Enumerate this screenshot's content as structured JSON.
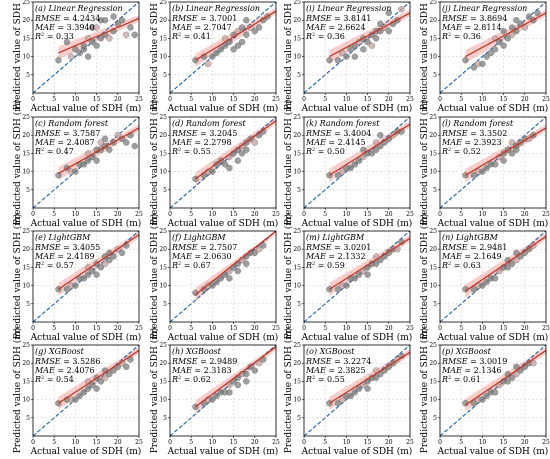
{
  "figure": {
    "xlabel": "Actual value of SDH (m)",
    "ylabel": "Predicted value of SDH (m)"
  },
  "colors": {
    "point_fill": "#7f7f7f",
    "point_fill_alt": "#c6a2a2",
    "identity_line": "#1f5fa8",
    "fit_line": "#c0392b",
    "fit_band": "#f0a5a0",
    "grid": "#c8c8c8"
  },
  "chart_data": [
    {
      "type": "scatter",
      "title": "(a) Linear Regression",
      "xlim": [
        0,
        25
      ],
      "ylim": [
        0,
        25
      ],
      "xticks": [
        0,
        5,
        10,
        15,
        20,
        25
      ],
      "yticks": [
        5,
        10,
        15,
        20,
        25
      ],
      "grid": true,
      "rmse_label": "RMSE",
      "rmse": "4.2434",
      "mae_label": "MAE",
      "mae": "3.3940",
      "r2": "0.33",
      "x": [
        6,
        8,
        9,
        10,
        11,
        12,
        12,
        13,
        13,
        14,
        14,
        15,
        15,
        16,
        16,
        17,
        17,
        18,
        19,
        19,
        20,
        21,
        22,
        23,
        24
      ],
      "y": [
        9,
        14,
        10,
        12,
        11,
        12,
        13,
        15,
        10,
        14,
        18,
        13,
        18,
        15,
        20,
        16,
        20,
        15,
        21,
        17,
        19,
        20,
        16,
        18,
        16
      ],
      "fit": [
        [
          6,
          11
        ],
        [
          25,
          20.5
        ]
      ]
    },
    {
      "type": "scatter",
      "title": "(b) Linear Regression",
      "xlim": [
        0,
        25
      ],
      "ylim": [
        0,
        25
      ],
      "xticks": [
        0,
        5,
        10,
        15,
        20,
        25
      ],
      "yticks": [
        5,
        10,
        15,
        20,
        25
      ],
      "grid": true,
      "rmse_label": "RMSE",
      "rmse": "3.7001",
      "mae_label": "MAE",
      "mae": "2.7047",
      "r2": "0.41",
      "x": [
        6,
        8,
        9,
        10,
        11,
        12,
        13,
        13,
        14,
        15,
        15,
        16,
        16,
        17,
        17,
        18,
        18,
        19,
        20,
        21,
        22,
        23
      ],
      "y": [
        9,
        10,
        8,
        10,
        11,
        12,
        13,
        15,
        14,
        16,
        12,
        13,
        17,
        14,
        18,
        16,
        20,
        18,
        17,
        18,
        20,
        21
      ],
      "fit": [
        [
          6,
          9
        ],
        [
          25,
          22.5
        ]
      ]
    },
    {
      "type": "scatter",
      "title": "(i) Linear Regression",
      "xlim": [
        0,
        25
      ],
      "ylim": [
        0,
        25
      ],
      "xticks": [
        0,
        5,
        10,
        15,
        20,
        25
      ],
      "yticks": [
        5,
        10,
        15,
        20,
        25
      ],
      "grid": true,
      "rmse_label": "RMSE",
      "rmse": "3.8141",
      "mae_label": "MAE",
      "mae": "2.6624",
      "r2": "0.36",
      "x": [
        6,
        8,
        9,
        10,
        11,
        12,
        12,
        13,
        14,
        14,
        15,
        16,
        16,
        17,
        17,
        18,
        18,
        19,
        20,
        20,
        21,
        22,
        23
      ],
      "y": [
        9,
        9,
        11,
        10,
        12,
        13,
        10,
        14,
        15,
        12,
        14,
        16,
        13,
        17,
        15,
        17,
        19,
        18,
        22,
        17,
        19,
        20,
        23
      ],
      "fit": [
        [
          6,
          10
        ],
        [
          25,
          22
        ]
      ]
    },
    {
      "type": "scatter",
      "title": "(j) Linear Regression",
      "xlim": [
        0,
        25
      ],
      "ylim": [
        0,
        25
      ],
      "xticks": [
        0,
        5,
        10,
        15,
        20,
        25
      ],
      "yticks": [
        5,
        10,
        15,
        20,
        25
      ],
      "grid": true,
      "rmse_label": "RMSE",
      "rmse": "3.8694",
      "mae_label": "MAE",
      "mae": "2.8114",
      "r2": "0.36",
      "x": [
        6,
        8,
        9,
        10,
        11,
        12,
        13,
        13,
        14,
        15,
        15,
        16,
        17,
        17,
        18,
        18,
        19,
        20,
        21,
        22,
        23
      ],
      "y": [
        9,
        7,
        8,
        8,
        10,
        11,
        12,
        15,
        14,
        13,
        17,
        15,
        16,
        18,
        17,
        20,
        19,
        18,
        21,
        20,
        22
      ],
      "fit": [
        [
          6,
          10
        ],
        [
          25,
          22
        ]
      ]
    },
    {
      "type": "scatter",
      "title": "(c) Random forest",
      "xlim": [
        0,
        25
      ],
      "ylim": [
        0,
        25
      ],
      "xticks": [
        0,
        5,
        10,
        15,
        20,
        25
      ],
      "yticks": [
        5,
        10,
        15,
        20,
        25
      ],
      "grid": true,
      "rmse_label": "RMSE",
      "rmse": "3.7587",
      "mae_label": "MAE",
      "mae": "2.4087",
      "r2": "0.47",
      "x": [
        6,
        8,
        9,
        10,
        11,
        12,
        13,
        13,
        14,
        15,
        15,
        16,
        16,
        17,
        17,
        18,
        19,
        20,
        21,
        22,
        23,
        24
      ],
      "y": [
        9,
        11,
        10,
        10,
        12,
        12,
        13,
        15,
        14,
        16,
        13,
        16,
        18,
        17,
        19,
        16,
        18,
        20,
        19,
        18,
        20,
        17
      ],
      "fit": [
        [
          6,
          9.5
        ],
        [
          25,
          22
        ]
      ]
    },
    {
      "type": "scatter",
      "title": "(d) Random forest",
      "xlim": [
        0,
        25
      ],
      "ylim": [
        0,
        25
      ],
      "xticks": [
        0,
        5,
        10,
        15,
        20,
        25
      ],
      "yticks": [
        5,
        10,
        15,
        20,
        25
      ],
      "grid": true,
      "rmse_label": "RMSE",
      "rmse": "3.2045",
      "mae_label": "MAE",
      "mae": "2.2798",
      "r2": "0.55",
      "x": [
        6,
        8,
        9,
        10,
        11,
        12,
        13,
        14,
        14,
        15,
        16,
        16,
        17,
        17,
        18,
        18,
        19,
        20,
        21,
        22
      ],
      "y": [
        8,
        9,
        10,
        10,
        12,
        13,
        12,
        14,
        11,
        15,
        16,
        13,
        17,
        15,
        18,
        16,
        19,
        18,
        20,
        21
      ],
      "fit": [
        [
          6,
          8
        ],
        [
          25,
          24
        ]
      ]
    },
    {
      "type": "scatter",
      "title": "(k) Random forest",
      "xlim": [
        0,
        25
      ],
      "ylim": [
        0,
        25
      ],
      "xticks": [
        0,
        5,
        10,
        15,
        20,
        25
      ],
      "yticks": [
        5,
        10,
        15,
        20,
        25
      ],
      "grid": true,
      "rmse_label": "RMSE",
      "rmse": "3.4004",
      "mae_label": "MAE",
      "mae": "2.4145",
      "r2": "0.50",
      "x": [
        6,
        8,
        9,
        10,
        11,
        12,
        13,
        14,
        14,
        15,
        16,
        17,
        17,
        18,
        18,
        19,
        20,
        21,
        22,
        23
      ],
      "y": [
        9,
        9,
        10,
        11,
        11,
        12,
        13,
        14,
        16,
        15,
        15,
        16,
        18,
        17,
        20,
        18,
        19,
        20,
        21,
        21
      ],
      "fit": [
        [
          6,
          9
        ],
        [
          25,
          23
        ]
      ]
    },
    {
      "type": "scatter",
      "title": "(l) Random forest",
      "xlim": [
        0,
        25
      ],
      "ylim": [
        0,
        25
      ],
      "xticks": [
        0,
        5,
        10,
        15,
        20,
        25
      ],
      "yticks": [
        5,
        10,
        15,
        20,
        25
      ],
      "grid": true,
      "rmse_label": "RMSE",
      "rmse": "3.3502",
      "mae_label": "MAE",
      "mae": "2.3923",
      "r2": "0.52",
      "x": [
        6,
        8,
        9,
        10,
        11,
        12,
        13,
        14,
        15,
        15,
        16,
        17,
        17,
        18,
        18,
        19,
        20,
        21,
        22
      ],
      "y": [
        9,
        9,
        10,
        10,
        11,
        12,
        12,
        14,
        15,
        13,
        16,
        15,
        18,
        17,
        16,
        18,
        19,
        19,
        20
      ],
      "fit": [
        [
          6,
          9
        ],
        [
          25,
          22
        ]
      ]
    },
    {
      "type": "scatter",
      "title": "(e) LightGBM",
      "xlim": [
        0,
        25
      ],
      "ylim": [
        0,
        25
      ],
      "xticks": [
        0,
        5,
        10,
        15,
        20,
        25
      ],
      "yticks": [
        5,
        10,
        15,
        20,
        25
      ],
      "grid": true,
      "rmse_label": "RMSE",
      "rmse": "3.4055",
      "mae_label": "MAE",
      "mae": "2.4189",
      "r2": "0.57",
      "x": [
        6,
        8,
        9,
        10,
        11,
        12,
        13,
        13,
        14,
        15,
        15,
        16,
        17,
        17,
        18,
        18,
        19,
        20,
        21,
        22
      ],
      "y": [
        9,
        9,
        10,
        10,
        12,
        12,
        13,
        15,
        14,
        16,
        13,
        15,
        16,
        18,
        17,
        19,
        18,
        20,
        19,
        21
      ],
      "fit": [
        [
          6,
          9
        ],
        [
          25,
          24
        ]
      ]
    },
    {
      "type": "scatter",
      "title": "(f) LightGBM",
      "xlim": [
        0,
        25
      ],
      "ylim": [
        0,
        25
      ],
      "xticks": [
        0,
        5,
        10,
        15,
        20,
        25
      ],
      "yticks": [
        5,
        10,
        15,
        20,
        25
      ],
      "grid": true,
      "rmse_label": "RMSE",
      "rmse": "2.7507",
      "mae_label": "MAE",
      "mae": "2.0630",
      "r2": "0.67",
      "x": [
        6,
        8,
        9,
        10,
        11,
        12,
        13,
        14,
        14,
        15,
        16,
        16,
        17,
        18,
        18,
        19,
        20,
        21,
        22
      ],
      "y": [
        8,
        9,
        10,
        10,
        11,
        12,
        13,
        14,
        12,
        15,
        16,
        14,
        17,
        18,
        16,
        19,
        19,
        20,
        21
      ],
      "fit": [
        [
          6,
          7.5
        ],
        [
          25,
          25
        ]
      ]
    },
    {
      "type": "scatter",
      "title": "(m) LightGBM",
      "xlim": [
        0,
        25
      ],
      "ylim": [
        0,
        25
      ],
      "xticks": [
        0,
        5,
        10,
        15,
        20,
        25
      ],
      "yticks": [
        5,
        10,
        15,
        20,
        25
      ],
      "grid": true,
      "rmse_label": "RMSE",
      "rmse": "3.0201",
      "mae_label": "MAE",
      "mae": "2.1332",
      "r2": "0.59",
      "x": [
        6,
        8,
        9,
        10,
        11,
        12,
        13,
        14,
        15,
        15,
        16,
        17,
        17,
        18,
        19,
        20,
        21,
        22,
        23
      ],
      "y": [
        9,
        9,
        10,
        10,
        12,
        12,
        13,
        14,
        15,
        13,
        16,
        16,
        18,
        17,
        18,
        19,
        20,
        20,
        22
      ],
      "fit": [
        [
          6,
          9
        ],
        [
          25,
          23
        ]
      ]
    },
    {
      "type": "scatter",
      "title": "(n) LightGBM",
      "xlim": [
        0,
        25
      ],
      "ylim": [
        0,
        25
      ],
      "xticks": [
        0,
        5,
        10,
        15,
        20,
        25
      ],
      "yticks": [
        5,
        10,
        15,
        20,
        25
      ],
      "grid": true,
      "rmse_label": "RMSE",
      "rmse": "2.9481",
      "mae_label": "MAE",
      "mae": "2.1649",
      "r2": "0.63",
      "x": [
        6,
        8,
        9,
        10,
        11,
        12,
        13,
        14,
        15,
        16,
        16,
        17,
        18,
        18,
        19,
        20,
        21,
        22
      ],
      "y": [
        9,
        9,
        10,
        10,
        11,
        12,
        12,
        14,
        15,
        15,
        17,
        16,
        17,
        19,
        18,
        19,
        20,
        21
      ],
      "fit": [
        [
          6,
          8.5
        ],
        [
          25,
          23.5
        ]
      ]
    },
    {
      "type": "scatter",
      "title": "(g) XGBoost",
      "xlim": [
        0,
        25
      ],
      "ylim": [
        0,
        25
      ],
      "xticks": [
        0,
        5,
        10,
        15,
        20,
        25
      ],
      "yticks": [
        5,
        10,
        15,
        20,
        25
      ],
      "grid": true,
      "rmse_label": "RMSE",
      "rmse": "3.5286",
      "mae_label": "MAE",
      "mae": "2.4076",
      "r2": "0.54",
      "x": [
        6,
        8,
        9,
        10,
        11,
        12,
        13,
        13,
        14,
        15,
        15,
        16,
        17,
        17,
        18,
        19,
        20,
        21,
        22,
        23
      ],
      "y": [
        9,
        10,
        10,
        10,
        11,
        12,
        13,
        15,
        14,
        16,
        13,
        15,
        16,
        18,
        17,
        18,
        19,
        20,
        19,
        21
      ],
      "fit": [
        [
          6,
          9
        ],
        [
          25,
          23.5
        ]
      ]
    },
    {
      "type": "scatter",
      "title": "(h) XGBoost",
      "xlim": [
        0,
        25
      ],
      "ylim": [
        0,
        25
      ],
      "xticks": [
        0,
        5,
        10,
        15,
        20,
        25
      ],
      "yticks": [
        5,
        10,
        15,
        20,
        25
      ],
      "grid": true,
      "rmse_label": "RMSE",
      "rmse": "2.9489",
      "mae_label": "MAE",
      "mae": "2.3183",
      "r2": "0.62",
      "x": [
        6,
        8,
        9,
        10,
        11,
        12,
        13,
        14,
        14,
        15,
        16,
        16,
        17,
        18,
        18,
        19,
        20,
        21,
        22
      ],
      "y": [
        8,
        9,
        10,
        10,
        11,
        12,
        12,
        14,
        12,
        15,
        16,
        14,
        17,
        17,
        15,
        19,
        18,
        20,
        21
      ],
      "fit": [
        [
          6,
          8
        ],
        [
          25,
          24.5
        ]
      ]
    },
    {
      "type": "scatter",
      "title": "(o) XGBoost",
      "xlim": [
        0,
        25
      ],
      "ylim": [
        0,
        25
      ],
      "xticks": [
        0,
        5,
        10,
        15,
        20,
        25
      ],
      "yticks": [
        5,
        10,
        15,
        20,
        25
      ],
      "grid": true,
      "rmse_label": "RMSE",
      "rmse": "3.2274",
      "mae_label": "MAE",
      "mae": "2.3825",
      "r2": "0.55",
      "x": [
        6,
        8,
        9,
        10,
        11,
        12,
        13,
        14,
        15,
        15,
        16,
        17,
        17,
        18,
        19,
        20,
        21,
        22,
        23
      ],
      "y": [
        9,
        9,
        10,
        11,
        11,
        12,
        13,
        14,
        15,
        13,
        16,
        16,
        18,
        17,
        18,
        19,
        20,
        21,
        22
      ],
      "fit": [
        [
          6,
          9
        ],
        [
          25,
          23
        ]
      ]
    },
    {
      "type": "scatter",
      "title": "(p) XGBoost",
      "xlim": [
        0,
        25
      ],
      "ylim": [
        0,
        25
      ],
      "xticks": [
        0,
        5,
        10,
        15,
        20,
        25
      ],
      "yticks": [
        5,
        10,
        15,
        20,
        25
      ],
      "grid": true,
      "rmse_label": "RMSE",
      "rmse": "3.0019",
      "mae_label": "MAE",
      "mae": "2.1346",
      "r2": "0.61",
      "x": [
        6,
        8,
        9,
        10,
        11,
        12,
        13,
        14,
        15,
        16,
        16,
        17,
        18,
        18,
        19,
        20,
        21,
        22
      ],
      "y": [
        9,
        9,
        10,
        10,
        11,
        12,
        12,
        14,
        15,
        15,
        17,
        16,
        17,
        19,
        18,
        19,
        20,
        20
      ],
      "fit": [
        [
          6,
          8.5
        ],
        [
          25,
          23.5
        ]
      ]
    }
  ]
}
